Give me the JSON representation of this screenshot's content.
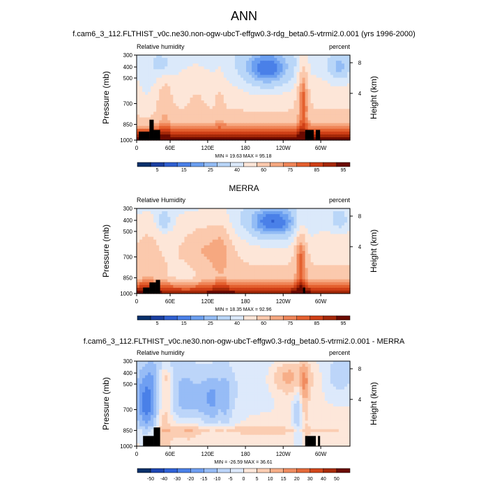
{
  "page_title": "ANN",
  "colors": {
    "main_scale": [
      "#08306b",
      "#1a3fa0",
      "#2f5fd0",
      "#4a80e8",
      "#6b9ff0",
      "#93bcf5",
      "#b9d6f8",
      "#dbe9fa",
      "#fde6d8",
      "#fbc9ad",
      "#f6a880",
      "#ef8558",
      "#e4602f",
      "#cf3f16",
      "#a52808",
      "#6b0a00"
    ],
    "diff_scale": [
      "#08306b",
      "#1d46b3",
      "#2f62d8",
      "#4a80e8",
      "#6f9ff2",
      "#97bcf6",
      "#bcd5f9",
      "#dde9fb",
      "#fde7da",
      "#fbcdb2",
      "#f7ae88",
      "#f08c60",
      "#e56a3a",
      "#d2471b",
      "#a82b08",
      "#6b0a00"
    ],
    "terrain": "#000000"
  },
  "chart_data": [
    {
      "type": "heatmap",
      "title": "f.cam6_3_112.FLTHIST_v0c.ne30.non-ogw-ubcT-effgw0.3-rdg_beta0.5-vtrmi2.0.001 (yrs 1996-2000)",
      "left_label": "Relative humidity",
      "right_label": "percent",
      "ylabel": "Pressure (mb)",
      "y2label": "Height (km)",
      "y_ticks": [
        "300",
        "400",
        "500",
        "700",
        "850",
        "1000"
      ],
      "y2_ticks": [
        "8",
        "4"
      ],
      "x_ticks": [
        "0",
        "60E",
        "120E",
        "180",
        "120W",
        "60W"
      ],
      "stats": "MIN = 19.63 MAX = 95.18",
      "colorbar_labels": [
        "5",
        "15",
        "25",
        "40",
        "60",
        "75",
        "85",
        "95"
      ],
      "min": 19.63,
      "max": 95.18
    },
    {
      "type": "heatmap",
      "title": "MERRA",
      "left_label": "Relative Humidity",
      "right_label": "percent",
      "ylabel": "Pressure (mb)",
      "y2label": "Height (km)",
      "y_ticks": [
        "300",
        "400",
        "500",
        "700",
        "850",
        "1000"
      ],
      "y2_ticks": [
        "8",
        "4"
      ],
      "x_ticks": [
        "0",
        "60E",
        "120E",
        "180",
        "120W",
        "60W"
      ],
      "stats": "MIN = 18.35 MAX = 92.96",
      "colorbar_labels": [
        "5",
        "15",
        "25",
        "40",
        "60",
        "75",
        "85",
        "95"
      ],
      "min": 18.35,
      "max": 92.96
    },
    {
      "type": "heatmap",
      "title": "f.cam6_3_112.FLTHIST_v0c.ne30.non-ogw-ubcT-effgw0.3-rdg_beta0.5-vtrmi2.0.001 - MERRA",
      "left_label": "Relative humidity",
      "right_label": "percent",
      "ylabel": "Pressure (mb)",
      "y2label": "Height (km)",
      "y_ticks": [
        "300",
        "400",
        "500",
        "700",
        "850",
        "1000"
      ],
      "y2_ticks": [
        "8",
        "4"
      ],
      "x_ticks": [
        "0",
        "60E",
        "120E",
        "180",
        "120W",
        "60W"
      ],
      "stats": "MIN = -26.59 MAX = 36.61",
      "colorbar_labels": [
        "-50",
        "-40",
        "-30",
        "-20",
        "-15",
        "-10",
        "-5",
        "0",
        "5",
        "10",
        "15",
        "20",
        "30",
        "40",
        "50"
      ],
      "min": -26.59,
      "max": 36.61
    }
  ]
}
